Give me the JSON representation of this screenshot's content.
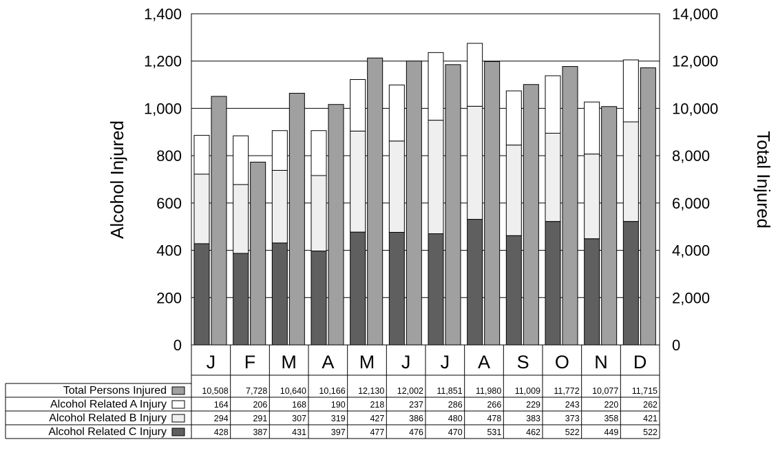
{
  "chart_data": {
    "type": "bar",
    "categories": [
      "J",
      "F",
      "M",
      "A",
      "M",
      "J",
      "J",
      "A",
      "S",
      "O",
      "N",
      "D"
    ],
    "ylabel_left": "Alcohol Injured",
    "ylabel_right": "Total Injured",
    "ylim_left": [
      0,
      1400
    ],
    "ylim_right": [
      0,
      14000
    ],
    "yticks_left": [
      "0",
      "200",
      "400",
      "600",
      "800",
      "1,000",
      "1,200",
      "1,400"
    ],
    "yticks_right": [
      "0",
      "2,000",
      "4,000",
      "6,000",
      "8,000",
      "10,000",
      "12,000",
      "14,000"
    ],
    "grid": true,
    "colors": {
      "total": "#a0a0a0",
      "a_injury": "#ffffff",
      "b_injury": "#efefef",
      "c_injury": "#5f5f5f"
    },
    "series": [
      {
        "name": "Total Persons Injured",
        "axis": "right",
        "values": [
          10508,
          7728,
          10640,
          10166,
          12130,
          12002,
          11851,
          11980,
          11009,
          11772,
          10077,
          11715
        ],
        "labels": [
          "10,508",
          "7,728",
          "10,640",
          "10,166",
          "12,130",
          "12,002",
          "11,851",
          "11,980",
          "11,009",
          "11,772",
          "10,077",
          "11,715"
        ]
      },
      {
        "name": "Alcohol Related A Injury",
        "axis": "left",
        "values": [
          164,
          206,
          168,
          190,
          218,
          237,
          286,
          266,
          229,
          243,
          220,
          262
        ],
        "labels": [
          "164",
          "206",
          "168",
          "190",
          "218",
          "237",
          "286",
          "266",
          "229",
          "243",
          "220",
          "262"
        ]
      },
      {
        "name": "Alcohol Related B Injury",
        "axis": "left",
        "values": [
          294,
          291,
          307,
          319,
          427,
          386,
          480,
          478,
          383,
          373,
          358,
          421
        ],
        "labels": [
          "294",
          "291",
          "307",
          "319",
          "427",
          "386",
          "480",
          "478",
          "383",
          "373",
          "358",
          "421"
        ]
      },
      {
        "name": "Alcohol Related C Injury",
        "axis": "left",
        "values": [
          428,
          387,
          431,
          397,
          477,
          476,
          470,
          531,
          462,
          522,
          449,
          522
        ],
        "labels": [
          "428",
          "387",
          "431",
          "397",
          "477",
          "476",
          "470",
          "531",
          "462",
          "522",
          "449",
          "522"
        ]
      }
    ]
  }
}
